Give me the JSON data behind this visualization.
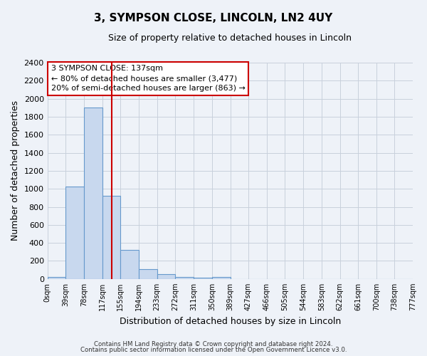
{
  "title": "3, SYMPSON CLOSE, LINCOLN, LN2 4UY",
  "subtitle": "Size of property relative to detached houses in Lincoln",
  "xlabel": "Distribution of detached houses by size in Lincoln",
  "ylabel": "Number of detached properties",
  "bar_color": "#c8d8ee",
  "bar_edge_color": "#6699cc",
  "background_color": "#eef2f8",
  "grid_color": "#c8d0dc",
  "vline_x": 137,
  "vline_color": "#cc0000",
  "bins": [
    0,
    39,
    78,
    117,
    155,
    194,
    233,
    272,
    311,
    350,
    389,
    427,
    466,
    505,
    544,
    583,
    622,
    661,
    700,
    738,
    777
  ],
  "bin_labels": [
    "0sqm",
    "39sqm",
    "78sqm",
    "117sqm",
    "155sqm",
    "194sqm",
    "233sqm",
    "272sqm",
    "311sqm",
    "350sqm",
    "389sqm",
    "427sqm",
    "466sqm",
    "505sqm",
    "544sqm",
    "583sqm",
    "622sqm",
    "661sqm",
    "700sqm",
    "738sqm",
    "777sqm"
  ],
  "bar_heights": [
    20,
    1025,
    1900,
    920,
    320,
    110,
    50,
    25,
    15,
    20,
    0,
    0,
    0,
    0,
    0,
    0,
    0,
    0,
    0,
    0
  ],
  "ylim": [
    0,
    2400
  ],
  "yticks": [
    0,
    200,
    400,
    600,
    800,
    1000,
    1200,
    1400,
    1600,
    1800,
    2000,
    2200,
    2400
  ],
  "annotation_title": "3 SYMPSON CLOSE: 137sqm",
  "annotation_line1": "← 80% of detached houses are smaller (3,477)",
  "annotation_line2": "20% of semi-detached houses are larger (863) →",
  "annotation_box_color": "#ffffff",
  "annotation_box_edge": "#cc0000",
  "footer_line1": "Contains HM Land Registry data © Crown copyright and database right 2024.",
  "footer_line2": "Contains public sector information licensed under the Open Government Licence v3.0."
}
